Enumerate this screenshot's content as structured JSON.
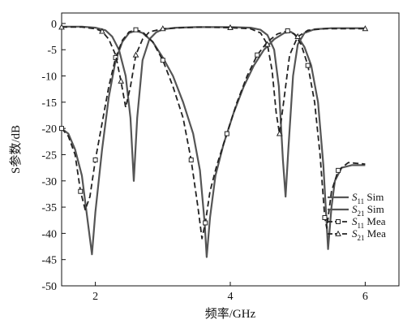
{
  "chart_data": {
    "type": "line",
    "xlabel": "频率/GHz",
    "ylabel": "S参数/dB",
    "xlim": [
      1.5,
      6.5
    ],
    "ylim": [
      -50,
      2
    ],
    "xticks": [
      2,
      4,
      6
    ],
    "yticks": [
      0,
      -5,
      -10,
      -15,
      -20,
      -25,
      -30,
      -35,
      -40,
      -45,
      -50
    ],
    "grid": false,
    "legend_position": "bottom-right",
    "series": [
      {
        "name": "S11 Sim",
        "legend_main": "S",
        "legend_sub": "11",
        "legend_suffix": " Sim",
        "color": "#555555",
        "style": "solid",
        "marker": "none",
        "points": [
          [
            1.5,
            -20
          ],
          [
            1.6,
            -21
          ],
          [
            1.7,
            -24
          ],
          [
            1.8,
            -29
          ],
          [
            1.88,
            -37
          ],
          [
            1.95,
            -44
          ],
          [
            2.0,
            -36
          ],
          [
            2.1,
            -24
          ],
          [
            2.2,
            -14
          ],
          [
            2.3,
            -7
          ],
          [
            2.4,
            -3.5
          ],
          [
            2.5,
            -1.8
          ],
          [
            2.6,
            -1.4
          ],
          [
            2.7,
            -1.8
          ],
          [
            2.85,
            -3.5
          ],
          [
            3.0,
            -6.5
          ],
          [
            3.15,
            -10
          ],
          [
            3.3,
            -15
          ],
          [
            3.45,
            -21
          ],
          [
            3.55,
            -28
          ],
          [
            3.62,
            -38
          ],
          [
            3.65,
            -44.5
          ],
          [
            3.7,
            -37
          ],
          [
            3.78,
            -29
          ],
          [
            3.9,
            -23
          ],
          [
            4.05,
            -17
          ],
          [
            4.2,
            -12
          ],
          [
            4.35,
            -8
          ],
          [
            4.5,
            -5
          ],
          [
            4.65,
            -3
          ],
          [
            4.8,
            -1.8
          ],
          [
            4.9,
            -1.6
          ],
          [
            5.0,
            -2.5
          ],
          [
            5.1,
            -4.5
          ],
          [
            5.2,
            -8
          ],
          [
            5.3,
            -15
          ],
          [
            5.38,
            -27
          ],
          [
            5.45,
            -43
          ],
          [
            5.5,
            -35
          ],
          [
            5.55,
            -30
          ],
          [
            5.65,
            -27.5
          ],
          [
            5.8,
            -27
          ],
          [
            6.0,
            -27
          ]
        ]
      },
      {
        "name": "S21 Sim",
        "legend_main": "S",
        "legend_sub": "21",
        "legend_suffix": " Sim",
        "color": "#555555",
        "style": "solid",
        "marker": "none",
        "points": [
          [
            1.5,
            -0.6
          ],
          [
            1.8,
            -0.6
          ],
          [
            2.0,
            -0.8
          ],
          [
            2.15,
            -1.3
          ],
          [
            2.25,
            -2.5
          ],
          [
            2.35,
            -5
          ],
          [
            2.45,
            -10
          ],
          [
            2.52,
            -18
          ],
          [
            2.57,
            -30
          ],
          [
            2.62,
            -18
          ],
          [
            2.7,
            -7
          ],
          [
            2.8,
            -3
          ],
          [
            2.9,
            -1.7
          ],
          [
            3.0,
            -1.1
          ],
          [
            3.2,
            -0.8
          ],
          [
            3.5,
            -0.7
          ],
          [
            4.0,
            -0.7
          ],
          [
            4.3,
            -0.8
          ],
          [
            4.45,
            -1.2
          ],
          [
            4.55,
            -2.2
          ],
          [
            4.65,
            -5
          ],
          [
            4.72,
            -12
          ],
          [
            4.78,
            -26
          ],
          [
            4.82,
            -33
          ],
          [
            4.86,
            -24
          ],
          [
            4.93,
            -10
          ],
          [
            5.0,
            -4
          ],
          [
            5.1,
            -1.8
          ],
          [
            5.25,
            -1.1
          ],
          [
            5.5,
            -0.9
          ],
          [
            6.0,
            -0.9
          ]
        ]
      },
      {
        "name": "S11 Mea",
        "legend_main": "S",
        "legend_sub": "11",
        "legend_suffix": " Mea",
        "color": "#222222",
        "style": "dashed",
        "marker": "square",
        "points": [
          [
            1.5,
            -20
          ],
          [
            1.6,
            -21.5
          ],
          [
            1.7,
            -25
          ],
          [
            1.78,
            -32
          ],
          [
            1.85,
            -35.5
          ],
          [
            1.92,
            -33
          ],
          [
            2.0,
            -26
          ],
          [
            2.1,
            -19
          ],
          [
            2.2,
            -12
          ],
          [
            2.3,
            -6.5
          ],
          [
            2.4,
            -3.2
          ],
          [
            2.5,
            -1.6
          ],
          [
            2.6,
            -1.2
          ],
          [
            2.7,
            -1.6
          ],
          [
            2.85,
            -3.5
          ],
          [
            3.0,
            -7
          ],
          [
            3.15,
            -12
          ],
          [
            3.3,
            -18
          ],
          [
            3.42,
            -26
          ],
          [
            3.52,
            -35
          ],
          [
            3.58,
            -41
          ],
          [
            3.63,
            -38
          ],
          [
            3.7,
            -32
          ],
          [
            3.8,
            -27
          ],
          [
            3.95,
            -21
          ],
          [
            4.1,
            -15
          ],
          [
            4.25,
            -10
          ],
          [
            4.4,
            -6
          ],
          [
            4.55,
            -3.5
          ],
          [
            4.7,
            -2
          ],
          [
            4.85,
            -1.4
          ],
          [
            4.95,
            -2
          ],
          [
            5.05,
            -4
          ],
          [
            5.15,
            -8
          ],
          [
            5.25,
            -15
          ],
          [
            5.33,
            -25
          ],
          [
            5.4,
            -37
          ],
          [
            5.43,
            -39
          ],
          [
            5.5,
            -32
          ],
          [
            5.6,
            -28
          ],
          [
            5.75,
            -26.5
          ],
          [
            6.0,
            -26.8
          ]
        ]
      },
      {
        "name": "S21 Mea",
        "legend_main": "S",
        "legend_sub": "21",
        "legend_suffix": " Mea",
        "color": "#222222",
        "style": "dashed",
        "marker": "triangle",
        "points": [
          [
            1.5,
            -0.7
          ],
          [
            1.8,
            -0.7
          ],
          [
            2.0,
            -1.0
          ],
          [
            2.1,
            -1.5
          ],
          [
            2.2,
            -3
          ],
          [
            2.3,
            -6
          ],
          [
            2.38,
            -11
          ],
          [
            2.45,
            -16
          ],
          [
            2.52,
            -12
          ],
          [
            2.6,
            -6
          ],
          [
            2.7,
            -3
          ],
          [
            2.8,
            -1.6
          ],
          [
            3.0,
            -1.0
          ],
          [
            3.3,
            -0.8
          ],
          [
            3.6,
            -0.7
          ],
          [
            4.0,
            -0.8
          ],
          [
            4.3,
            -1.0
          ],
          [
            4.45,
            -1.8
          ],
          [
            4.55,
            -4
          ],
          [
            4.62,
            -9
          ],
          [
            4.68,
            -17
          ],
          [
            4.73,
            -21
          ],
          [
            4.8,
            -14
          ],
          [
            4.88,
            -6
          ],
          [
            5.0,
            -2.5
          ],
          [
            5.15,
            -1.3
          ],
          [
            5.4,
            -1.0
          ],
          [
            6.0,
            -1.0
          ]
        ]
      }
    ]
  }
}
